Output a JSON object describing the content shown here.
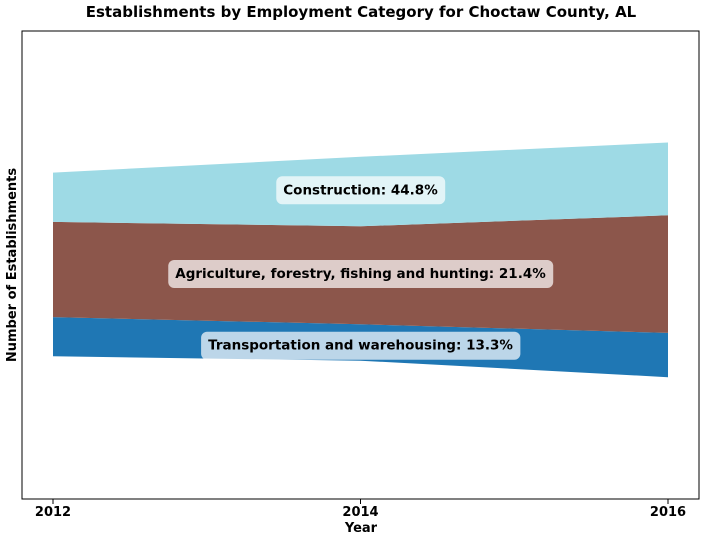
{
  "chart_data": {
    "type": "area",
    "title": "Establishments by Employment Category for Choctaw County, AL",
    "xlabel": "Year",
    "ylabel": "Number of Establishments",
    "x": [
      2012,
      2014,
      2016
    ],
    "x_tick_labels": [
      "2012",
      "2014",
      "2016"
    ],
    "y_ticks_shown": false,
    "grid": false,
    "legend": "none",
    "stacked": true,
    "baseline": "wiggle",
    "series": [
      {
        "name": "Transportation and warehousing",
        "values": [
          7.0,
          6.5,
          7.9
        ],
        "color": "#1f77b4",
        "annotation": "Transportation and warehousing: 13.3%"
      },
      {
        "name": "Agriculture, forestry, fishing and hunting",
        "values": [
          17.0,
          17.5,
          21.0
        ],
        "color": "#8c564b",
        "annotation": "Agriculture, forestry, fishing and hunting: 21.4%"
      },
      {
        "name": "Construction",
        "values": [
          8.8,
          12.4,
          13.0
        ],
        "color": "#9edae5",
        "annotation": "Construction: 44.8%"
      }
    ]
  }
}
